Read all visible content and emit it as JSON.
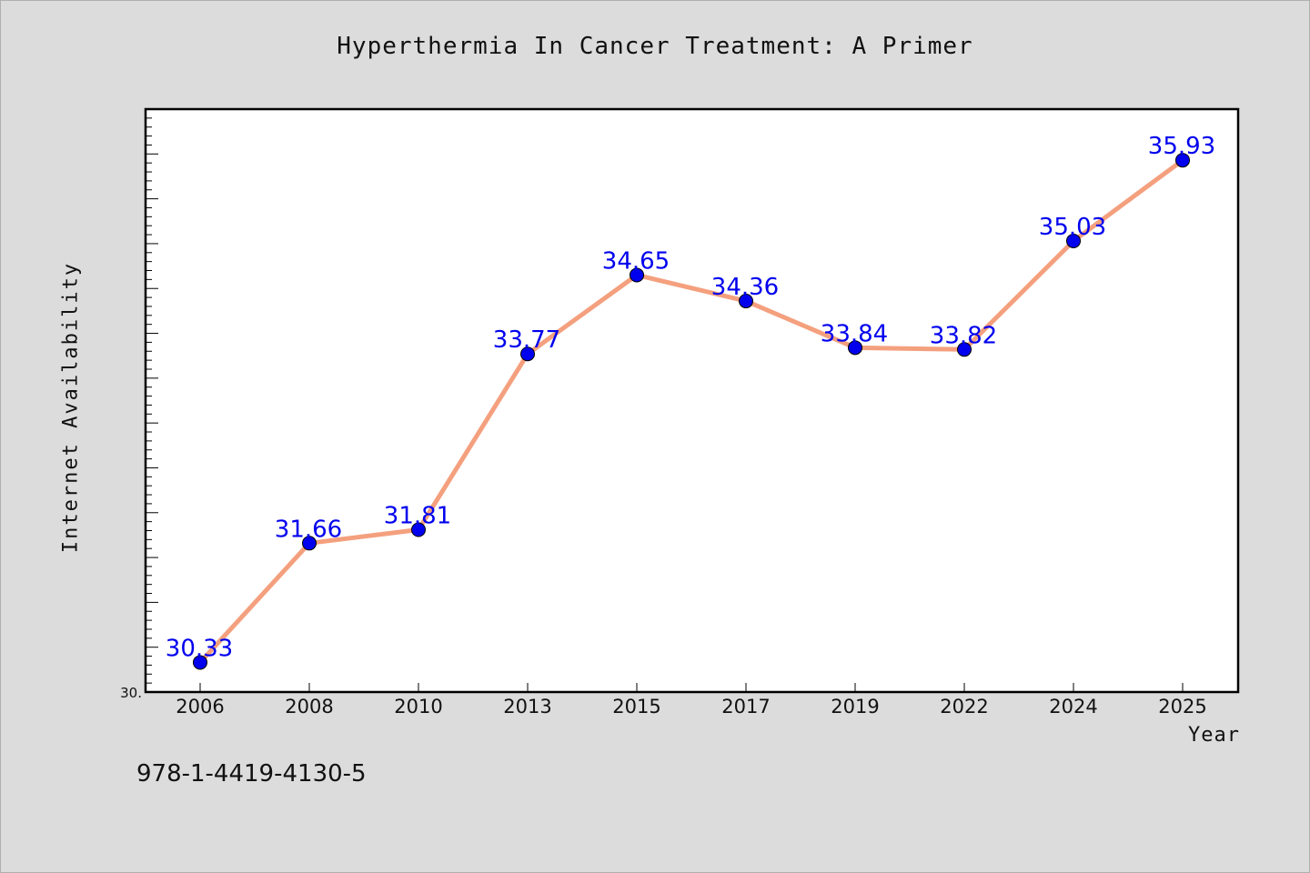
{
  "chart_data": {
    "type": "line",
    "title": "Hyperthermia In Cancer Treatment: A Primer",
    "xlabel": "Year",
    "ylabel": "Internet Availability",
    "categories": [
      "2006",
      "2008",
      "2010",
      "2013",
      "2015",
      "2017",
      "2019",
      "2022",
      "2024",
      "2025"
    ],
    "series": [
      {
        "values": [
          30.33,
          31.66,
          31.81,
          33.77,
          34.65,
          34.36,
          33.84,
          33.82,
          35.03,
          35.93
        ],
        "data_labels": [
          "30.33",
          "31.66",
          "31.81",
          "33.77",
          "34.65",
          "34.36",
          "33.84",
          "33.82",
          "35.03",
          "35.93"
        ]
      }
    ],
    "ylim": [
      30.0,
      36.5
    ],
    "y_tick_labels": [
      "30."
    ],
    "grid": false,
    "line_color": "#f4a07e",
    "marker_color": "#0000ee",
    "label_color": "#0000ee"
  },
  "footer": {
    "isbn": "978-1-4419-4130-5"
  }
}
